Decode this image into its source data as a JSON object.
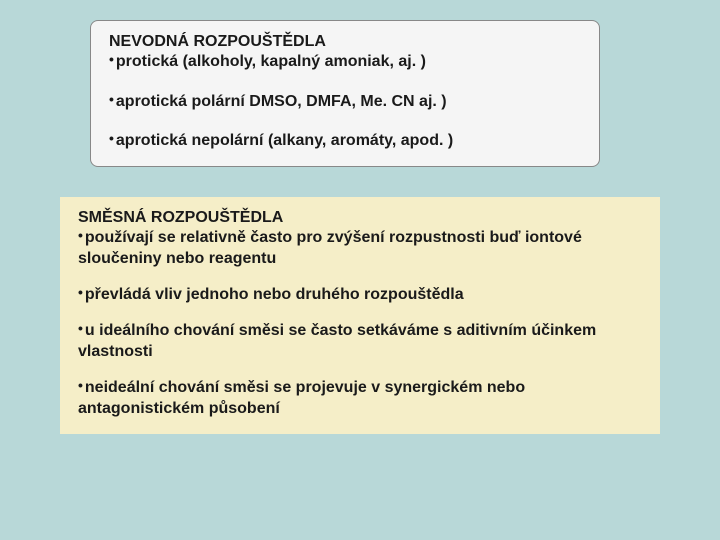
{
  "colors": {
    "page_background": "#b8d8d8",
    "box_top_background": "#f5f5f5",
    "box_top_border": "#888888",
    "box_bottom_background": "#f5eec8",
    "text_color": "#1a1a1a"
  },
  "typography": {
    "font_family": "Arial, Helvetica, sans-serif",
    "font_size_pt": 12,
    "font_weight": "bold"
  },
  "box_top": {
    "heading": "NEVODNÁ ROZPOUŠTĚDLA",
    "items": [
      "protická (alkoholy, kapalný amoniak, aj. )",
      "aprotická polární DMSO, DMFA, Me. CN aj. )",
      "aprotická nepolární (alkany, aromáty, apod. )"
    ]
  },
  "box_bottom": {
    "heading": "SMĚSNÁ ROZPOUŠTĚDLA",
    "items": [
      "používají se relativně často pro zvýšení rozpustnosti buď iontové sloučeniny nebo reagentu",
      "převládá vliv jednoho nebo druhého rozpouštědla",
      "u ideálního chování směsi se často setkáváme s aditivním účinkem vlastnosti",
      "neideální chování směsi se projevuje v synergickém nebo antagonistickém působení"
    ]
  }
}
